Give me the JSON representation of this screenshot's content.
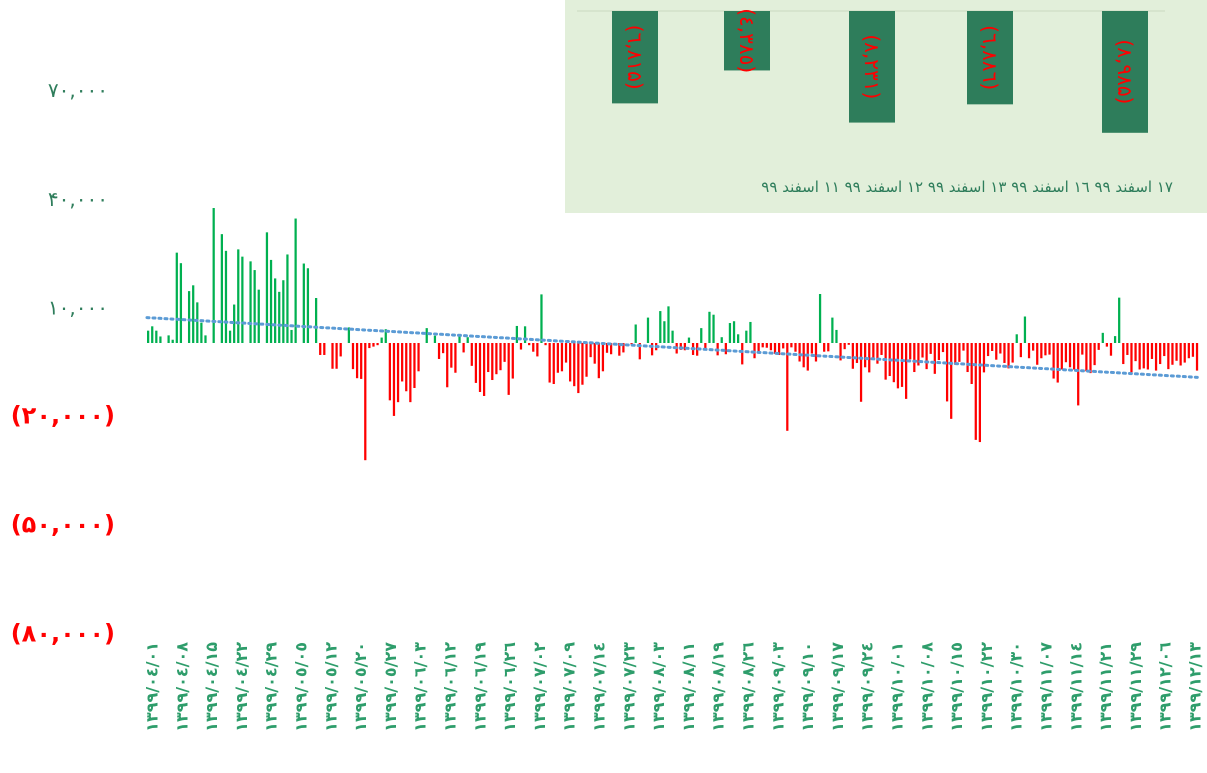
{
  "chart_data": [
    {
      "type": "bar",
      "title": "",
      "xlabel": "",
      "ylabel": "",
      "y_axis": {
        "ticks": [
          70000,
          40000,
          10000,
          -20000,
          -50000,
          -80000
        ],
        "tick_labels": [
          "۷۰,۰۰۰",
          "۴۰,۰۰۰",
          "۱۰,۰۰۰",
          "(۲۰,۰۰۰)",
          "(۵۰,۰۰۰)",
          "(۸۰,۰۰۰)"
        ],
        "ylim": [
          -80000,
          70000
        ]
      },
      "x_tick_labels": [
        "۱۳۹۹/۰٤/۰۱",
        "۱۳۹۹/۰٤/۰۸",
        "۱۳۹۹/۰٤/۱۵",
        "۱۳۹۹/۰٤/۲۲",
        "۱۳۹۹/۰٤/۲۹",
        "۱۳۹۹/۰٥/۰٥",
        "۱۳۹۹/۰٥/۱۲",
        "۱۳۹۹/۰٥/۲۰",
        "۱۳۹۹/۰٥/۲۷",
        "۱۳۹۹/۰٦/۰۳",
        "۱۳۹۹/۰٦/۱۲",
        "۱۳۹۹/۰٦/۱۹",
        "۱۳۹۹/۰٦/۲٦",
        "۱۳۹۹/۰۷/۰۲",
        "۱۳۹۹/۰۷/۰۹",
        "۱۳۹۹/۰۷/۱٤",
        "۱۳۹۹/۰۷/۲۳",
        "۱۳۹۹/۰۸/۰۳",
        "۱۳۹۹/۰۸/۱۱",
        "۱۳۹۹/۰۸/۱۹",
        "۱۳۹۹/۰۸/۲٦",
        "۱۳۹۹/۰۹/۰۳",
        "۱۳۹۹/۰۹/۱۰",
        "۱۳۹۹/۰۹/۱۷",
        "۱۳۹۹/۰۹/۲٤",
        "۱۳۹۹/۱۰/۰۱",
        "۱۳۹۹/۱۰/۰۸",
        "۱۳۹۹/۱۰/۱٥",
        "۱۳۹۹/۱۰/۲۲",
        "۱۳۹۹/۱۰/۳۰",
        "۱۳۹۹/۱۱/۰۷",
        "۱۳۹۹/۱۱/۱٤",
        "۱۳۹۹/۱۱/۲۱",
        "۱۳۹۹/۱۱/۲۹",
        "۱۳۹۹/۱۲/۰٦",
        "۱۳۹۹/۱۲/۱۳"
      ],
      "values": [
        3400,
        4600,
        3400,
        1800,
        0,
        2100,
        900,
        24900,
        22000,
        0,
        14300,
        15900,
        11200,
        5600,
        2100,
        0,
        37200,
        0,
        30000,
        25400,
        3400,
        10600,
        25800,
        23800,
        0,
        22500,
        20100,
        14700,
        0,
        30500,
        22900,
        17800,
        14100,
        17300,
        24400,
        3600,
        34300,
        0,
        21900,
        20600,
        0,
        12400,
        -3300,
        -3300,
        0,
        -7100,
        -7100,
        -3700,
        0,
        4300,
        -7200,
        -9700,
        -9900,
        -32300,
        -1400,
        -1000,
        -600,
        1500,
        3800,
        -15800,
        -20100,
        -16300,
        -10600,
        -13300,
        -16300,
        -12400,
        -7800,
        0,
        4100,
        0,
        2000,
        -4400,
        -2800,
        -12200,
        -6800,
        -8200,
        2500,
        -2600,
        1600,
        -6300,
        -11000,
        -13500,
        -14600,
        -8000,
        -10200,
        -8600,
        -7500,
        -5200,
        -14300,
        -9800,
        4700,
        -1800,
        4600,
        -600,
        -2400,
        -3700,
        13400,
        -600,
        -10900,
        -11300,
        -8200,
        -7800,
        -5400,
        -10600,
        -11900,
        -13800,
        -11500,
        -9300,
        -3900,
        -5700,
        -9700,
        -7800,
        -2700,
        -3100,
        0,
        -3500,
        -2600,
        0,
        -400,
        5100,
        -4500,
        0,
        7000,
        -3400,
        -2000,
        8800,
        6000,
        10100,
        3400,
        -2900,
        -1900,
        -2000,
        1500,
        -3300,
        -3500,
        4100,
        -2000,
        8600,
        7800,
        -3400,
        1600,
        -3100,
        5500,
        6000,
        2400,
        -5900,
        3400,
        5800,
        -4200,
        -2200,
        -1200,
        -1300,
        -2000,
        -3000,
        -3300,
        -1500,
        -24200,
        -1200,
        -2400,
        -5100,
        -6700,
        -7600,
        -2900,
        -5100,
        13500,
        -2400,
        -2300,
        7000,
        3600,
        -4800,
        -1700,
        -500,
        -7100,
        -5500,
        -16200,
        -6700,
        -8100,
        -4200,
        -5700,
        -3300,
        -10100,
        -9100,
        -10800,
        -12500,
        -12100,
        -15400,
        -4500,
        -8000,
        -6200,
        -4000,
        -7200,
        -3000,
        -8500,
        -4700,
        -2500,
        -16100,
        -20900,
        -6000,
        -5200,
        -2100,
        -8000,
        -11300,
        -26700,
        -27300,
        -8100,
        -3600,
        -2200,
        -4600,
        -2900,
        -5500,
        -7000,
        -5400,
        2400,
        -3900,
        7300,
        -4200,
        -2100,
        -6000,
        -4200,
        -3400,
        -3200,
        -9800,
        -10900,
        -7300,
        -5300,
        -6700,
        -7300,
        -17200,
        -3200,
        -7800,
        -8300,
        -6100,
        -1900,
        2800,
        -1000,
        -3500,
        1900,
        12500,
        -5800,
        -3300,
        -8100,
        -5000,
        -7300,
        -7000,
        -7300,
        -4400,
        -7600,
        -5800,
        -3600,
        -7200,
        -6000,
        -4900,
        -6200,
        -5400,
        -4200,
        -3800,
        -7600
      ],
      "trendline": {
        "style": "dotted",
        "start": 7000,
        "end": -9500
      },
      "colors": {
        "positive": "#00b050",
        "negative": "#ff0000",
        "trend": "#5b9bd5",
        "axis_label_pos": "#2e7d5b",
        "axis_label_neg": "#ff0000"
      },
      "grid": false
    },
    {
      "type": "bar",
      "title": "",
      "background": "#e2efda",
      "categories": [
        "۱۷ اسفند ۹۹",
        "۱٦ اسفند ۹۹",
        "۱۳ اسفند ۹۹",
        "۱۲ اسفند ۹۹",
        "۱۱ اسفند ۹۹"
      ],
      "values": [
        -8985,
        -6886,
        -8231,
        -4385,
        -6815
      ],
      "data_labels": [
        "(۸,۹۸۵)",
        "(٦,۸۸٦)",
        "(۸,۲۳۱)",
        "(٤,۳۸٥)",
        "(٦,۸۱۵)"
      ],
      "colors": {
        "bar": "#2e7d5b",
        "label": "#ff0000",
        "category": "#2e7d5b"
      }
    }
  ]
}
